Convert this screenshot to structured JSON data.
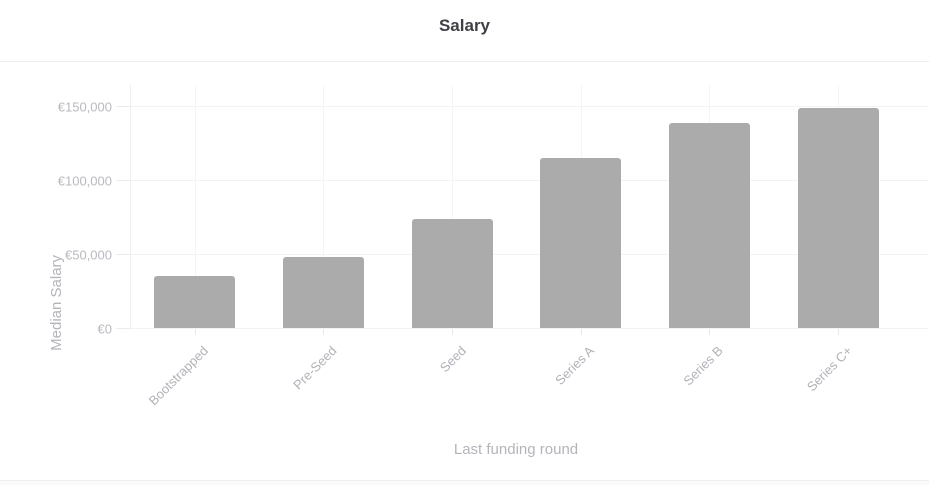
{
  "header": {
    "title": "Salary"
  },
  "chart_data": {
    "type": "bar",
    "title": "Salary",
    "xlabel": "Last funding round",
    "ylabel": "Median Salary",
    "categories": [
      "Bootstrapped",
      "Pre-Seed",
      "Seed",
      "Series A",
      "Series B",
      "Series C+"
    ],
    "values": [
      35500,
      48000,
      74000,
      115000,
      139000,
      149000
    ],
    "yticks": [
      {
        "value": 0,
        "label": "€0"
      },
      {
        "value": 50000,
        "label": "€50,000"
      },
      {
        "value": 100000,
        "label": "€100,000"
      },
      {
        "value": 150000,
        "label": "€150,000"
      }
    ],
    "ylim": [
      0,
      164000
    ],
    "grid": true,
    "legend": false,
    "bar_color": "#ababab",
    "grid_color": "#f3f3f4",
    "tick_label_color": "#b9b9c0",
    "axis_title_color": "#b4b4bb",
    "title_color": "#3f3f46",
    "background_color": "#ffffff"
  }
}
